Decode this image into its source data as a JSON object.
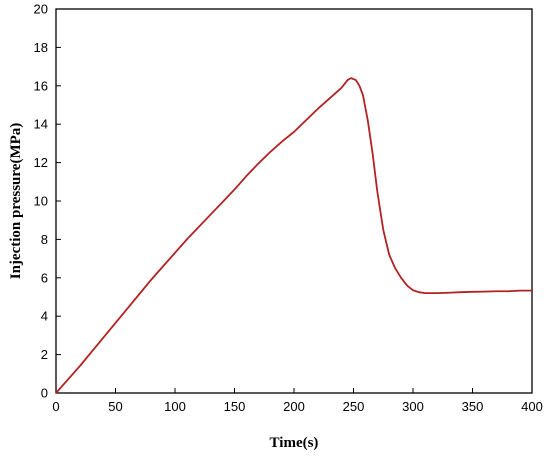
{
  "chart_data": {
    "type": "line",
    "title": "",
    "xlabel": "Time(s)",
    "ylabel": "Injection pressure(MPa)",
    "xlim": [
      0,
      400
    ],
    "ylim": [
      0,
      20
    ],
    "xticks": [
      0,
      50,
      100,
      150,
      200,
      250,
      300,
      350,
      400
    ],
    "yticks": [
      0,
      2,
      4,
      6,
      8,
      10,
      12,
      14,
      16,
      18,
      20
    ],
    "grid": false,
    "legend": "none",
    "series": [
      {
        "color": "#b22222",
        "x": [
          0,
          10,
          20,
          30,
          40,
          50,
          60,
          70,
          80,
          90,
          100,
          110,
          120,
          130,
          140,
          150,
          160,
          170,
          180,
          190,
          200,
          210,
          220,
          230,
          240,
          245,
          248,
          252,
          255,
          258,
          262,
          266,
          270,
          275,
          280,
          285,
          290,
          295,
          300,
          305,
          310,
          320,
          330,
          340,
          350,
          360,
          370,
          380,
          390,
          400
        ],
        "y": [
          0,
          0.7,
          1.4,
          2.15,
          2.9,
          3.65,
          4.4,
          5.15,
          5.9,
          6.6,
          7.3,
          8.0,
          8.65,
          9.3,
          9.95,
          10.6,
          11.3,
          11.95,
          12.55,
          13.1,
          13.6,
          14.2,
          14.8,
          15.35,
          15.9,
          16.3,
          16.4,
          16.3,
          16.0,
          15.5,
          14.2,
          12.5,
          10.5,
          8.5,
          7.2,
          6.5,
          6.0,
          5.6,
          5.35,
          5.25,
          5.2,
          5.2,
          5.22,
          5.25,
          5.27,
          5.28,
          5.3,
          5.3,
          5.33,
          5.33
        ]
      }
    ]
  }
}
